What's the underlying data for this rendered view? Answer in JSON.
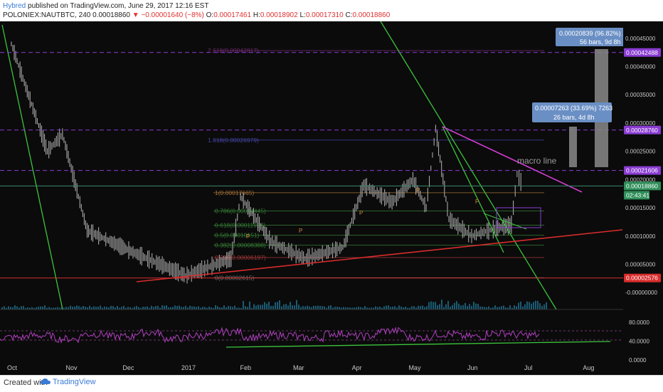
{
  "header": {
    "author": "Hybred",
    "published": "published on TradingView.com, June 29, 2017 12:16 EST",
    "symbol": "POLONIEX:NAUTBTC, 240",
    "last": "0.00018860",
    "change": "−0.00001640 (−8%)",
    "o_label": "O:",
    "o_value": "0.00017461",
    "h_label": "H:",
    "h_value": "0.00018902",
    "l_label": "L:",
    "l_value": "0.00017310",
    "c_label": "C:",
    "c_value": "0.00018860"
  },
  "footer": {
    "created": "Created with",
    "brand": "TradingView"
  },
  "colors": {
    "background": "#0b0b0b",
    "candles": "#a8a8a8",
    "green_line": "#3cc43c",
    "magenta_line": "#d23cd2",
    "red_line": "#d82c2c",
    "purple_dash": "#8a3cd2",
    "rsi": "#b040c0",
    "volume": "#1f6f8f",
    "info_box": "#6a8fc4"
  },
  "chart_data": [
    {
      "type": "line",
      "title": "",
      "series": [
        {
          "name": "",
          "x": [
            "2017-10-01",
            "2017-10-20",
            "2017-10-28",
            "2017-11-10",
            "2017-12-05",
            "2018-01-01",
            "2018-01-25",
            "2018-01-30",
            "2018-02-15",
            "2018-03-05",
            "2018-03-25",
            "2018-04-05",
            "2018-04-20",
            "2018-05-01",
            "2018-05-08",
            "2018-05-13",
            "2018-05-20",
            "2018-06-01",
            "2018-06-10",
            "2018-06-22",
            "2018-06-25",
            "2018-06-28"
          ],
          "values": [
            0.00044,
            0.00025,
            0.00028,
            0.00011,
            7e-05,
            3e-05,
            6e-05,
            0.00017,
            9e-05,
            6e-05,
            8e-05,
            0.00019,
            0.00016,
            0.0002,
            0.00015,
            0.00029,
            0.00013,
            0.0001,
            0.00011,
            0.00012,
            0.00021,
            0.0001886
          ]
        }
      ],
      "ylim": [
        -3e-05,
        0.00048
      ],
      "y_ticks": [
        "0.00045000",
        "0.00040000",
        "0.00035000",
        "0.00030000",
        "0.00025000",
        "0.00020000",
        "0.00015000",
        "0.00010000",
        "0.00005000",
        "-0.00000000"
      ],
      "x_ticks": [
        "Oct",
        "Nov",
        "Dec",
        "2017",
        "Feb",
        "Mar",
        "Apr",
        "May",
        "Jun",
        "Jul",
        "Aug"
      ],
      "fib_levels": [
        {
          "label": "2.618(0.00042817)",
          "value": 0.00042817
        },
        {
          "label": "1.618(0.00026979)",
          "value": 0.00026979
        },
        {
          "label": "1(0.00017665)",
          "value": 0.00017665
        },
        {
          "label": "0.786(0.00014445)",
          "value": 0.00014445
        },
        {
          "label": "0.618(0.00011924)",
          "value": 0.00011924
        },
        {
          "label": "0.5(0.00010151)",
          "value": 0.00010151
        },
        {
          "label": "0.382(0.00008388)",
          "value": 8.388e-05
        },
        {
          "label": "0.236(0.00006197)",
          "value": 6.197e-05
        },
        {
          "label": "0(0.00002615)",
          "value": 2.615e-05
        }
      ],
      "price_tags": [
        {
          "label": "0.00042488",
          "value": 0.00042488
        },
        {
          "label": "0.00028760",
          "value": 0.0002876
        },
        {
          "label": "0.00021606",
          "value": 0.00021606
        },
        {
          "label": "0.00018860",
          "value": 0.0001886
        },
        {
          "label": "0.00002576",
          "value": 2.576e-05
        }
      ],
      "countdown": "02:43:41",
      "annotations": [
        {
          "text": "macro line"
        },
        {
          "text": "P"
        }
      ],
      "measure_boxes": [
        {
          "line1": "0.00020839 (96.82%) 2",
          "line2": "56 bars, 9d 8h"
        },
        {
          "line1": "0.00007263 (33.69%) 7263",
          "line2": "26 bars, 4d 8h"
        }
      ],
      "grid": false
    },
    {
      "type": "line",
      "title": "",
      "series": [
        {
          "name": "",
          "values": [
            48,
            52,
            45,
            55,
            50,
            58,
            46,
            52,
            60,
            49,
            53,
            47,
            56,
            51,
            62,
            48,
            55,
            50,
            57,
            53
          ]
        }
      ],
      "ylim": [
        0,
        100
      ],
      "y_ticks": [
        "80.0000",
        "40.0000",
        "0.0000"
      ]
    }
  ]
}
